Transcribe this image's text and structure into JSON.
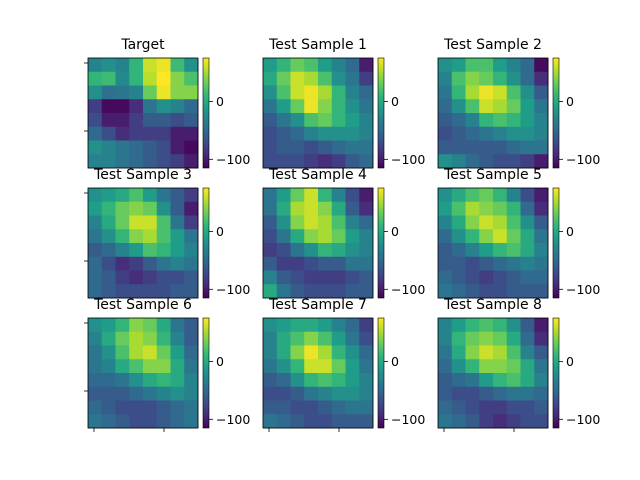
{
  "figure": {
    "background": "#ffffff",
    "colormap": "viridis"
  },
  "chart_data": {
    "type": "heatmap",
    "rows": 8,
    "cols": 8,
    "colorbar_ticks": [
      0,
      -100
    ],
    "colorbar_range": [
      -115,
      75
    ],
    "panels": [
      {
        "title": "Target",
        "values": [
          [
            -30,
            -20,
            -30,
            10,
            60,
            70,
            15,
            -20
          ],
          [
            10,
            15,
            -25,
            10,
            55,
            75,
            40,
            20
          ],
          [
            -20,
            -45,
            -40,
            -30,
            30,
            70,
            40,
            40
          ],
          [
            -80,
            -110,
            -110,
            -90,
            -40,
            -20,
            -30,
            -50
          ],
          [
            -70,
            -100,
            -100,
            -80,
            -60,
            -60,
            -70,
            -60
          ],
          [
            -50,
            -70,
            -90,
            -80,
            -80,
            -80,
            -100,
            -100
          ],
          [
            -20,
            -30,
            -40,
            -50,
            -60,
            -70,
            -100,
            -110
          ],
          [
            -30,
            -30,
            -40,
            -50,
            -60,
            -70,
            -80,
            -100
          ]
        ]
      },
      {
        "title": "Test Sample 1",
        "values": [
          [
            -10,
            10,
            30,
            20,
            -10,
            -30,
            -50,
            -100
          ],
          [
            0,
            30,
            60,
            50,
            20,
            -20,
            -40,
            -80
          ],
          [
            -20,
            20,
            60,
            70,
            50,
            10,
            -30,
            -50
          ],
          [
            -40,
            -10,
            30,
            70,
            40,
            10,
            -20,
            -40
          ],
          [
            -60,
            -40,
            -20,
            20,
            30,
            10,
            -10,
            -30
          ],
          [
            -70,
            -60,
            -50,
            -30,
            -20,
            -20,
            -20,
            -30
          ],
          [
            -70,
            -60,
            -60,
            -70,
            -60,
            -50,
            -40,
            -40
          ],
          [
            -70,
            -70,
            -70,
            -80,
            -90,
            -80,
            -60,
            -50
          ]
        ]
      },
      {
        "title": "Test Sample 2",
        "values": [
          [
            -20,
            -10,
            20,
            20,
            -10,
            -30,
            -50,
            -110
          ],
          [
            -30,
            20,
            40,
            30,
            10,
            -20,
            -50,
            -90
          ],
          [
            -40,
            10,
            50,
            70,
            60,
            20,
            -20,
            -60
          ],
          [
            -50,
            -20,
            20,
            60,
            50,
            30,
            -10,
            -40
          ],
          [
            -60,
            -50,
            -30,
            10,
            20,
            10,
            -10,
            -30
          ],
          [
            -70,
            -60,
            -50,
            -40,
            -30,
            -20,
            -20,
            -30
          ],
          [
            -60,
            -60,
            -60,
            -60,
            -60,
            -50,
            -40,
            -40
          ],
          [
            -20,
            -30,
            -50,
            -60,
            -70,
            -70,
            -80,
            -100
          ]
        ]
      },
      {
        "title": "Test Sample 3",
        "values": [
          [
            -20,
            -10,
            0,
            20,
            -10,
            -40,
            -60,
            -80
          ],
          [
            -10,
            10,
            30,
            40,
            30,
            -20,
            -60,
            -100
          ],
          [
            -30,
            0,
            30,
            60,
            60,
            20,
            -40,
            -80
          ],
          [
            -40,
            -20,
            10,
            40,
            50,
            20,
            -10,
            -40
          ],
          [
            -60,
            -50,
            -30,
            -10,
            20,
            10,
            -10,
            -30
          ],
          [
            -50,
            -70,
            -90,
            -80,
            -60,
            -40,
            -30,
            -40
          ],
          [
            -50,
            -60,
            -80,
            -90,
            -80,
            -70,
            -70,
            -60
          ],
          [
            -50,
            -60,
            -70,
            -70,
            -70,
            -70,
            -60,
            -60
          ]
        ]
      },
      {
        "title": "Test Sample 4",
        "values": [
          [
            -40,
            -10,
            30,
            60,
            10,
            -30,
            -70,
            -100
          ],
          [
            -40,
            0,
            50,
            60,
            40,
            0,
            -60,
            -90
          ],
          [
            -60,
            -20,
            40,
            60,
            50,
            20,
            -30,
            -50
          ],
          [
            -70,
            -40,
            0,
            40,
            50,
            30,
            -10,
            -30
          ],
          [
            -80,
            -70,
            -40,
            -20,
            10,
            0,
            -20,
            -30
          ],
          [
            -60,
            -80,
            -80,
            -70,
            -60,
            -60,
            -40,
            -40
          ],
          [
            -30,
            -60,
            -70,
            -80,
            -80,
            -80,
            -70,
            -60
          ],
          [
            0,
            -40,
            -60,
            -70,
            -70,
            -70,
            -60,
            -60
          ]
        ]
      },
      {
        "title": "Test Sample 5",
        "values": [
          [
            -20,
            0,
            20,
            30,
            10,
            -30,
            -70,
            -100
          ],
          [
            -10,
            20,
            50,
            40,
            30,
            10,
            -50,
            -90
          ],
          [
            -30,
            0,
            40,
            60,
            50,
            20,
            -20,
            -60
          ],
          [
            -50,
            -20,
            10,
            40,
            60,
            30,
            0,
            -40
          ],
          [
            -60,
            -50,
            -30,
            -10,
            10,
            20,
            0,
            -30
          ],
          [
            -60,
            -60,
            -70,
            -60,
            -50,
            -40,
            -30,
            -40
          ],
          [
            -50,
            -60,
            -70,
            -80,
            -70,
            -60,
            -50,
            -50
          ],
          [
            -40,
            -50,
            -60,
            -70,
            -70,
            -60,
            -60,
            -60
          ]
        ]
      },
      {
        "title": "Test Sample 6",
        "values": [
          [
            -20,
            -10,
            10,
            40,
            30,
            0,
            -40,
            -60
          ],
          [
            -30,
            0,
            30,
            50,
            40,
            10,
            -30,
            -60
          ],
          [
            -40,
            -20,
            20,
            50,
            60,
            30,
            -10,
            -50
          ],
          [
            -40,
            -30,
            0,
            20,
            40,
            40,
            0,
            -40
          ],
          [
            -50,
            -50,
            -40,
            -20,
            0,
            10,
            0,
            -30
          ],
          [
            -60,
            -60,
            -60,
            -50,
            -40,
            -30,
            -20,
            -30
          ],
          [
            -50,
            -60,
            -70,
            -70,
            -70,
            -60,
            -50,
            -40
          ],
          [
            -40,
            -50,
            -60,
            -70,
            -70,
            -60,
            -50,
            -40
          ]
        ]
      },
      {
        "title": "Test Sample 7",
        "values": [
          [
            -20,
            -10,
            0,
            0,
            -10,
            -30,
            -50,
            -80
          ],
          [
            -30,
            0,
            20,
            40,
            20,
            -10,
            -40,
            -70
          ],
          [
            -30,
            0,
            40,
            70,
            50,
            10,
            -20,
            -50
          ],
          [
            -40,
            -20,
            10,
            60,
            60,
            30,
            -10,
            -40
          ],
          [
            -60,
            -50,
            -20,
            10,
            20,
            10,
            -10,
            -30
          ],
          [
            -70,
            -70,
            -60,
            -40,
            -30,
            -20,
            -20,
            -30
          ],
          [
            -60,
            -60,
            -70,
            -70,
            -60,
            -50,
            -40,
            -40
          ],
          [
            -40,
            -50,
            -60,
            -70,
            -70,
            -60,
            -60,
            -60
          ]
        ]
      },
      {
        "title": "Test Sample 8",
        "values": [
          [
            -30,
            -10,
            10,
            20,
            10,
            -20,
            -60,
            -100
          ],
          [
            -30,
            10,
            30,
            40,
            30,
            0,
            -50,
            -90
          ],
          [
            -40,
            0,
            40,
            60,
            50,
            20,
            -30,
            -60
          ],
          [
            -50,
            -20,
            10,
            40,
            40,
            30,
            0,
            -40
          ],
          [
            -60,
            -50,
            -40,
            -10,
            10,
            20,
            0,
            -30
          ],
          [
            -60,
            -70,
            -70,
            -60,
            -50,
            -40,
            -40,
            -50
          ],
          [
            -50,
            -60,
            -70,
            -80,
            -80,
            -70,
            -70,
            -60
          ],
          [
            -40,
            -50,
            -60,
            -80,
            -90,
            -80,
            -70,
            -70
          ]
        ]
      }
    ]
  }
}
